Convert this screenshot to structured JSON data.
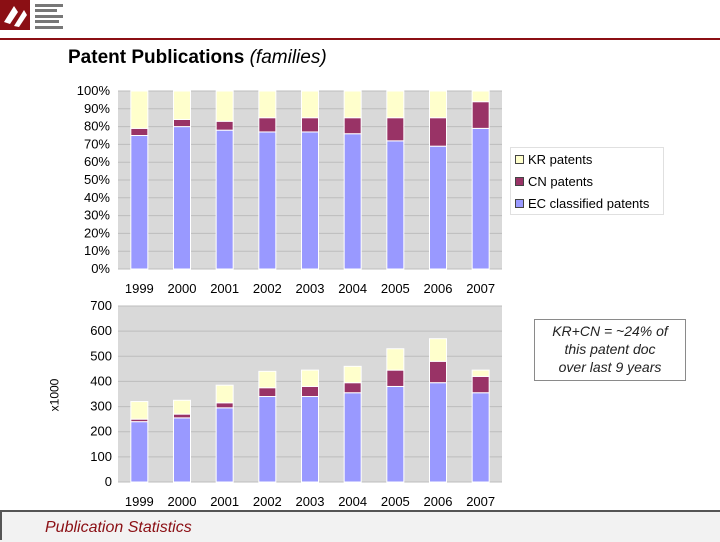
{
  "header": {
    "title_main": "Patent Publications",
    "title_sub": "(families)"
  },
  "legend": {
    "items": [
      {
        "label": "KR patents",
        "color": "#ffffcc"
      },
      {
        "label": "CN patents",
        "color": "#993366"
      },
      {
        "label": "EC classified patents",
        "color": "#9999ff"
      }
    ]
  },
  "annotation": {
    "lines": [
      "KR+CN = ~24% of",
      "this patent doc",
      "over last 9 years"
    ]
  },
  "footer": {
    "text": "Publication Statistics"
  },
  "colors": {
    "ec": "#9999ff",
    "cn": "#993366",
    "kr": "#ffffcc",
    "brand": "#8b0f14",
    "plot_bg": "#d9d9d9"
  },
  "chart_data": [
    {
      "type": "bar",
      "stacked": true,
      "percent": true,
      "categories": [
        "1999",
        "2000",
        "2001",
        "2002",
        "2003",
        "2004",
        "2005",
        "2006",
        "2007"
      ],
      "series": [
        {
          "name": "EC classified patents",
          "values": [
            75,
            80,
            78,
            77,
            77,
            76,
            72,
            69,
            79
          ]
        },
        {
          "name": "CN patents",
          "values": [
            4,
            4,
            5,
            8,
            8,
            9,
            13,
            16,
            15
          ]
        },
        {
          "name": "KR patents",
          "values": [
            21,
            16,
            17,
            15,
            15,
            15,
            15,
            15,
            6
          ]
        }
      ],
      "ylim": [
        0,
        100
      ],
      "yticks": [
        "0%",
        "10%",
        "20%",
        "30%",
        "40%",
        "50%",
        "60%",
        "70%",
        "80%",
        "90%",
        "100%"
      ],
      "legend": "right"
    },
    {
      "type": "bar",
      "stacked": true,
      "categories": [
        "1999",
        "2000",
        "2001",
        "2002",
        "2003",
        "2004",
        "2005",
        "2006",
        "2007"
      ],
      "series": [
        {
          "name": "EC classified patents",
          "values": [
            240,
            255,
            295,
            340,
            340,
            355,
            380,
            395,
            355
          ]
        },
        {
          "name": "CN patents",
          "values": [
            10,
            15,
            20,
            35,
            40,
            40,
            65,
            85,
            65
          ]
        },
        {
          "name": "KR patents",
          "values": [
            70,
            55,
            70,
            65,
            65,
            65,
            85,
            90,
            25
          ]
        }
      ],
      "ylim": [
        0,
        700
      ],
      "yticks": [
        "0",
        "100",
        "200",
        "300",
        "400",
        "500",
        "600",
        "700"
      ],
      "ylabel": "x1000"
    }
  ]
}
